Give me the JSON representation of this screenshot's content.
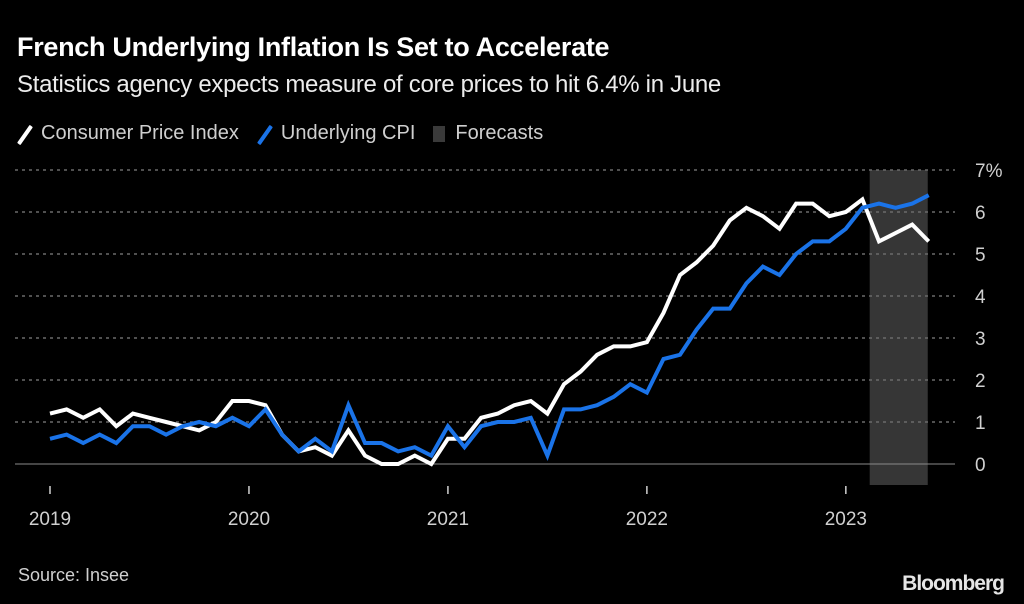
{
  "header": {
    "title": "French Underlying Inflation Is Set to Accelerate",
    "subtitle": "Statistics agency expects measure of core prices to hit 6.4% in June"
  },
  "legend": [
    {
      "label": "Consumer Price Index",
      "color": "#ffffff",
      "kind": "line"
    },
    {
      "label": "Underlying CPI",
      "color": "#1a73e8",
      "kind": "line"
    },
    {
      "label": "Forecasts",
      "color": "#3a3a3a",
      "kind": "box"
    }
  ],
  "footer": {
    "source": "Source: Insee",
    "brand": "Bloomberg"
  },
  "chart_data": {
    "type": "line",
    "title": "French Underlying Inflation Is Set to Accelerate",
    "subtitle": "Statistics agency expects measure of core prices to hit 6.4% in June",
    "xlabel": "",
    "ylabel": "",
    "x_start": "2019-01",
    "x_end": "2023-06",
    "x_ticks": [
      "2019",
      "2020",
      "2021",
      "2022",
      "2023"
    ],
    "y_ticks": [
      "0",
      "1",
      "2",
      "3",
      "4",
      "5",
      "6",
      "7%"
    ],
    "ylim": [
      0,
      7
    ],
    "grid": true,
    "legend_position": "top-left",
    "forecast_region": {
      "from": "2023-03",
      "to": "2023-06",
      "label": "Forecasts"
    },
    "x": [
      "2019-01",
      "2019-02",
      "2019-03",
      "2019-04",
      "2019-05",
      "2019-06",
      "2019-07",
      "2019-08",
      "2019-09",
      "2019-10",
      "2019-11",
      "2019-12",
      "2020-01",
      "2020-02",
      "2020-03",
      "2020-04",
      "2020-05",
      "2020-06",
      "2020-07",
      "2020-08",
      "2020-09",
      "2020-10",
      "2020-11",
      "2020-12",
      "2021-01",
      "2021-02",
      "2021-03",
      "2021-04",
      "2021-05",
      "2021-06",
      "2021-07",
      "2021-08",
      "2021-09",
      "2021-10",
      "2021-11",
      "2021-12",
      "2022-01",
      "2022-02",
      "2022-03",
      "2022-04",
      "2022-05",
      "2022-06",
      "2022-07",
      "2022-08",
      "2022-09",
      "2022-10",
      "2022-11",
      "2022-12",
      "2023-01",
      "2023-02",
      "2023-03",
      "2023-04",
      "2023-05",
      "2023-06"
    ],
    "series": [
      {
        "name": "Consumer Price Index",
        "color": "#ffffff",
        "values": [
          1.2,
          1.3,
          1.1,
          1.3,
          0.9,
          1.2,
          1.1,
          1.0,
          0.9,
          0.8,
          1.0,
          1.5,
          1.5,
          1.4,
          0.7,
          0.3,
          0.4,
          0.2,
          0.8,
          0.2,
          0.0,
          0.0,
          0.2,
          0.0,
          0.6,
          0.6,
          1.1,
          1.2,
          1.4,
          1.5,
          1.2,
          1.9,
          2.2,
          2.6,
          2.8,
          2.8,
          2.9,
          3.6,
          4.5,
          4.8,
          5.2,
          5.8,
          6.1,
          5.9,
          5.6,
          6.2,
          6.2,
          5.9,
          6.0,
          6.3,
          5.3,
          5.5,
          5.7,
          5.3
        ]
      },
      {
        "name": "Underlying CPI",
        "color": "#1a73e8",
        "values": [
          0.6,
          0.7,
          0.5,
          0.7,
          0.5,
          0.9,
          0.9,
          0.7,
          0.9,
          1.0,
          0.9,
          1.1,
          0.9,
          1.3,
          0.7,
          0.3,
          0.6,
          0.3,
          1.4,
          0.5,
          0.5,
          0.3,
          0.4,
          0.2,
          0.9,
          0.4,
          0.9,
          1.0,
          1.0,
          1.1,
          0.2,
          1.3,
          1.3,
          1.4,
          1.6,
          1.9,
          1.7,
          2.5,
          2.6,
          3.2,
          3.7,
          3.7,
          4.3,
          4.7,
          4.5,
          5.0,
          5.3,
          5.3,
          5.6,
          6.1,
          6.2,
          6.1,
          6.2,
          6.4
        ]
      }
    ]
  }
}
